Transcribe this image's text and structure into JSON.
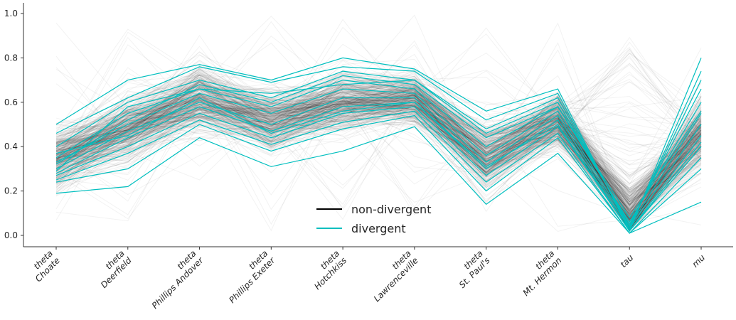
{
  "chart_data": {
    "type": "line",
    "subtype": "parallel-coordinates",
    "categories": [
      "theta\nChoate",
      "theta\nDeerfield",
      "theta\nPhillips Andover",
      "theta\nPhillips Exeter",
      "theta\nHotchkiss",
      "theta\nLawrenceville",
      "theta\nSt. Paul's",
      "theta\nMt. Hermon",
      "tau",
      "mu"
    ],
    "ylim": [
      0,
      1
    ],
    "yticks": [
      "0.0",
      "0.2",
      "0.4",
      "0.6",
      "0.8",
      "1.0"
    ],
    "grid": false,
    "legend": {
      "placement": "lower-center",
      "entries": [
        "non-divergent",
        "divergent"
      ]
    },
    "colors": {
      "non_divergent": "#000000",
      "divergent": "#00bfbf"
    },
    "series": [
      {
        "name": "non-divergent",
        "profile_mean": [
          0.35,
          0.48,
          0.62,
          0.52,
          0.6,
          0.62,
          0.36,
          0.52,
          0.1,
          0.46
        ],
        "profile_spread": [
          0.14,
          0.15,
          0.15,
          0.14,
          0.14,
          0.12,
          0.15,
          0.12,
          0.12,
          0.17
        ]
      },
      {
        "name": "divergent",
        "lines": [
          [
            0.5,
            0.7,
            0.77,
            0.7,
            0.8,
            0.75,
            0.56,
            0.66,
            0.02,
            0.8
          ],
          [
            0.19,
            0.22,
            0.44,
            0.31,
            0.38,
            0.49,
            0.14,
            0.37,
            0.01,
            0.15
          ],
          [
            0.46,
            0.62,
            0.76,
            0.69,
            0.76,
            0.74,
            0.52,
            0.64,
            0.03,
            0.74
          ],
          [
            0.4,
            0.6,
            0.7,
            0.62,
            0.74,
            0.7,
            0.46,
            0.6,
            0.05,
            0.66
          ],
          [
            0.35,
            0.55,
            0.66,
            0.58,
            0.7,
            0.66,
            0.4,
            0.58,
            0.06,
            0.6
          ],
          [
            0.33,
            0.5,
            0.64,
            0.55,
            0.66,
            0.64,
            0.36,
            0.56,
            0.04,
            0.55
          ],
          [
            0.3,
            0.47,
            0.6,
            0.5,
            0.62,
            0.62,
            0.33,
            0.54,
            0.03,
            0.5
          ],
          [
            0.28,
            0.44,
            0.58,
            0.47,
            0.58,
            0.6,
            0.3,
            0.52,
            0.02,
            0.45
          ],
          [
            0.27,
            0.4,
            0.55,
            0.44,
            0.55,
            0.58,
            0.27,
            0.49,
            0.02,
            0.4
          ],
          [
            0.25,
            0.37,
            0.52,
            0.41,
            0.51,
            0.56,
            0.24,
            0.46,
            0.01,
            0.35
          ],
          [
            0.24,
            0.3,
            0.5,
            0.38,
            0.48,
            0.54,
            0.2,
            0.44,
            0.01,
            0.3
          ],
          [
            0.32,
            0.52,
            0.68,
            0.6,
            0.72,
            0.68,
            0.44,
            0.58,
            0.08,
            0.56
          ],
          [
            0.37,
            0.45,
            0.62,
            0.46,
            0.56,
            0.6,
            0.31,
            0.5,
            0.02,
            0.42
          ],
          [
            0.29,
            0.58,
            0.66,
            0.64,
            0.68,
            0.7,
            0.48,
            0.62,
            0.04,
            0.7
          ]
        ]
      }
    ]
  }
}
